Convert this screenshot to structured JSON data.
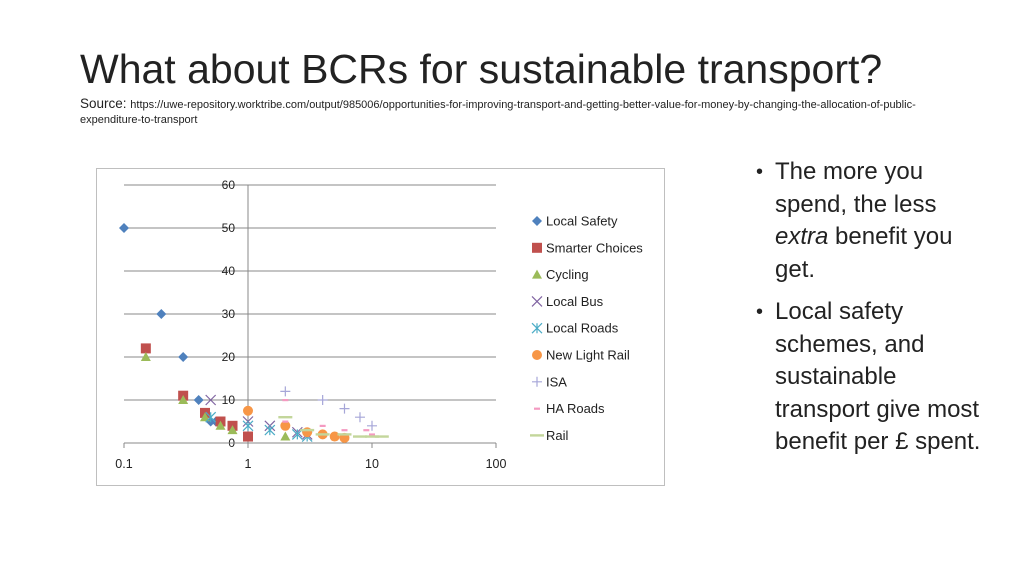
{
  "slide": {
    "title": "What about BCRs for sustainable transport?",
    "source_label": "Source: ",
    "source_url": "https://uwe-repository.worktribe.com/output/985006/opportunities-for-improving-transport-and-getting-better-value-for-money-by-changing-the-allocation-of-public-expenditure-to-transport",
    "bullets": [
      {
        "parts": [
          "The more you spend, the less ",
          "extra",
          " benefit you get."
        ]
      },
      {
        "parts": [
          "Local safety schemes, and sustainable transport give most benefit per £ spent."
        ]
      }
    ]
  },
  "chart_data": {
    "type": "scatter",
    "title": "",
    "xlabel": "",
    "ylabel": "",
    "xscale": "log",
    "xlim": [
      0.1,
      100
    ],
    "ylim": [
      0,
      60
    ],
    "xticks": [
      0.1,
      1,
      10,
      100
    ],
    "xtick_labels": [
      "0.1",
      "1",
      "10",
      "100"
    ],
    "yticks": [
      0,
      10,
      20,
      30,
      40,
      50,
      60
    ],
    "ytick_labels": [
      "0",
      "10",
      "20",
      "30",
      "40",
      "50",
      "60"
    ],
    "grid": "horizontal",
    "legend_position": "right",
    "series": [
      {
        "name": "Local Safety",
        "marker": "diamond",
        "color": "#4f81bd",
        "points": [
          [
            0.1,
            50
          ],
          [
            0.2,
            30
          ],
          [
            0.3,
            20
          ],
          [
            0.4,
            10
          ],
          [
            0.45,
            7
          ],
          [
            0.5,
            5
          ],
          [
            0.55,
            5
          ]
        ]
      },
      {
        "name": "Smarter Choices",
        "marker": "square",
        "color": "#c0504d",
        "points": [
          [
            0.15,
            22
          ],
          [
            0.3,
            11
          ],
          [
            0.45,
            7
          ],
          [
            0.6,
            5
          ],
          [
            0.75,
            4
          ],
          [
            1,
            1.5
          ]
        ]
      },
      {
        "name": "Cycling",
        "marker": "triangle",
        "color": "#9bbb59",
        "points": [
          [
            0.15,
            20
          ],
          [
            0.3,
            10
          ],
          [
            0.45,
            6
          ],
          [
            0.6,
            4
          ],
          [
            0.75,
            3
          ],
          [
            2,
            1.5
          ]
        ]
      },
      {
        "name": "Local Bus",
        "marker": "x",
        "color": "#8064a2",
        "points": [
          [
            0.5,
            10
          ],
          [
            1,
            5
          ],
          [
            1.5,
            4
          ],
          [
            2.5,
            2.5
          ],
          [
            3,
            2
          ]
        ]
      },
      {
        "name": "Local Roads",
        "marker": "star",
        "color": "#4bacc6",
        "points": [
          [
            0.5,
            6
          ],
          [
            1,
            4
          ],
          [
            1.5,
            3
          ],
          [
            2.5,
            2
          ],
          [
            3,
            1.5
          ]
        ]
      },
      {
        "name": "New Light Rail",
        "marker": "circle",
        "color": "#f79646",
        "points": [
          [
            1,
            7.5
          ],
          [
            2,
            4
          ],
          [
            3,
            2.5
          ],
          [
            4,
            2
          ],
          [
            5,
            1.5
          ],
          [
            6,
            1.2
          ]
        ]
      },
      {
        "name": "ISA",
        "marker": "plus",
        "color": "#a6a6d8",
        "points": [
          [
            2,
            12
          ],
          [
            4,
            10
          ],
          [
            6,
            8
          ],
          [
            8,
            6
          ],
          [
            10,
            4
          ]
        ]
      },
      {
        "name": "HA Roads",
        "marker": "dash",
        "color": "#f49ac1",
        "points": [
          [
            2,
            10
          ],
          [
            2,
            5
          ],
          [
            4,
            4
          ],
          [
            6,
            3
          ],
          [
            9,
            3
          ],
          [
            10,
            2
          ]
        ]
      },
      {
        "name": "Rail",
        "marker": "bar",
        "color": "#c3d69b",
        "points": [
          [
            2,
            6
          ],
          [
            3,
            3
          ],
          [
            4,
            2
          ],
          [
            6,
            2
          ],
          [
            8,
            1.5
          ],
          [
            10,
            1.5
          ],
          [
            12,
            1.5
          ]
        ]
      }
    ]
  }
}
